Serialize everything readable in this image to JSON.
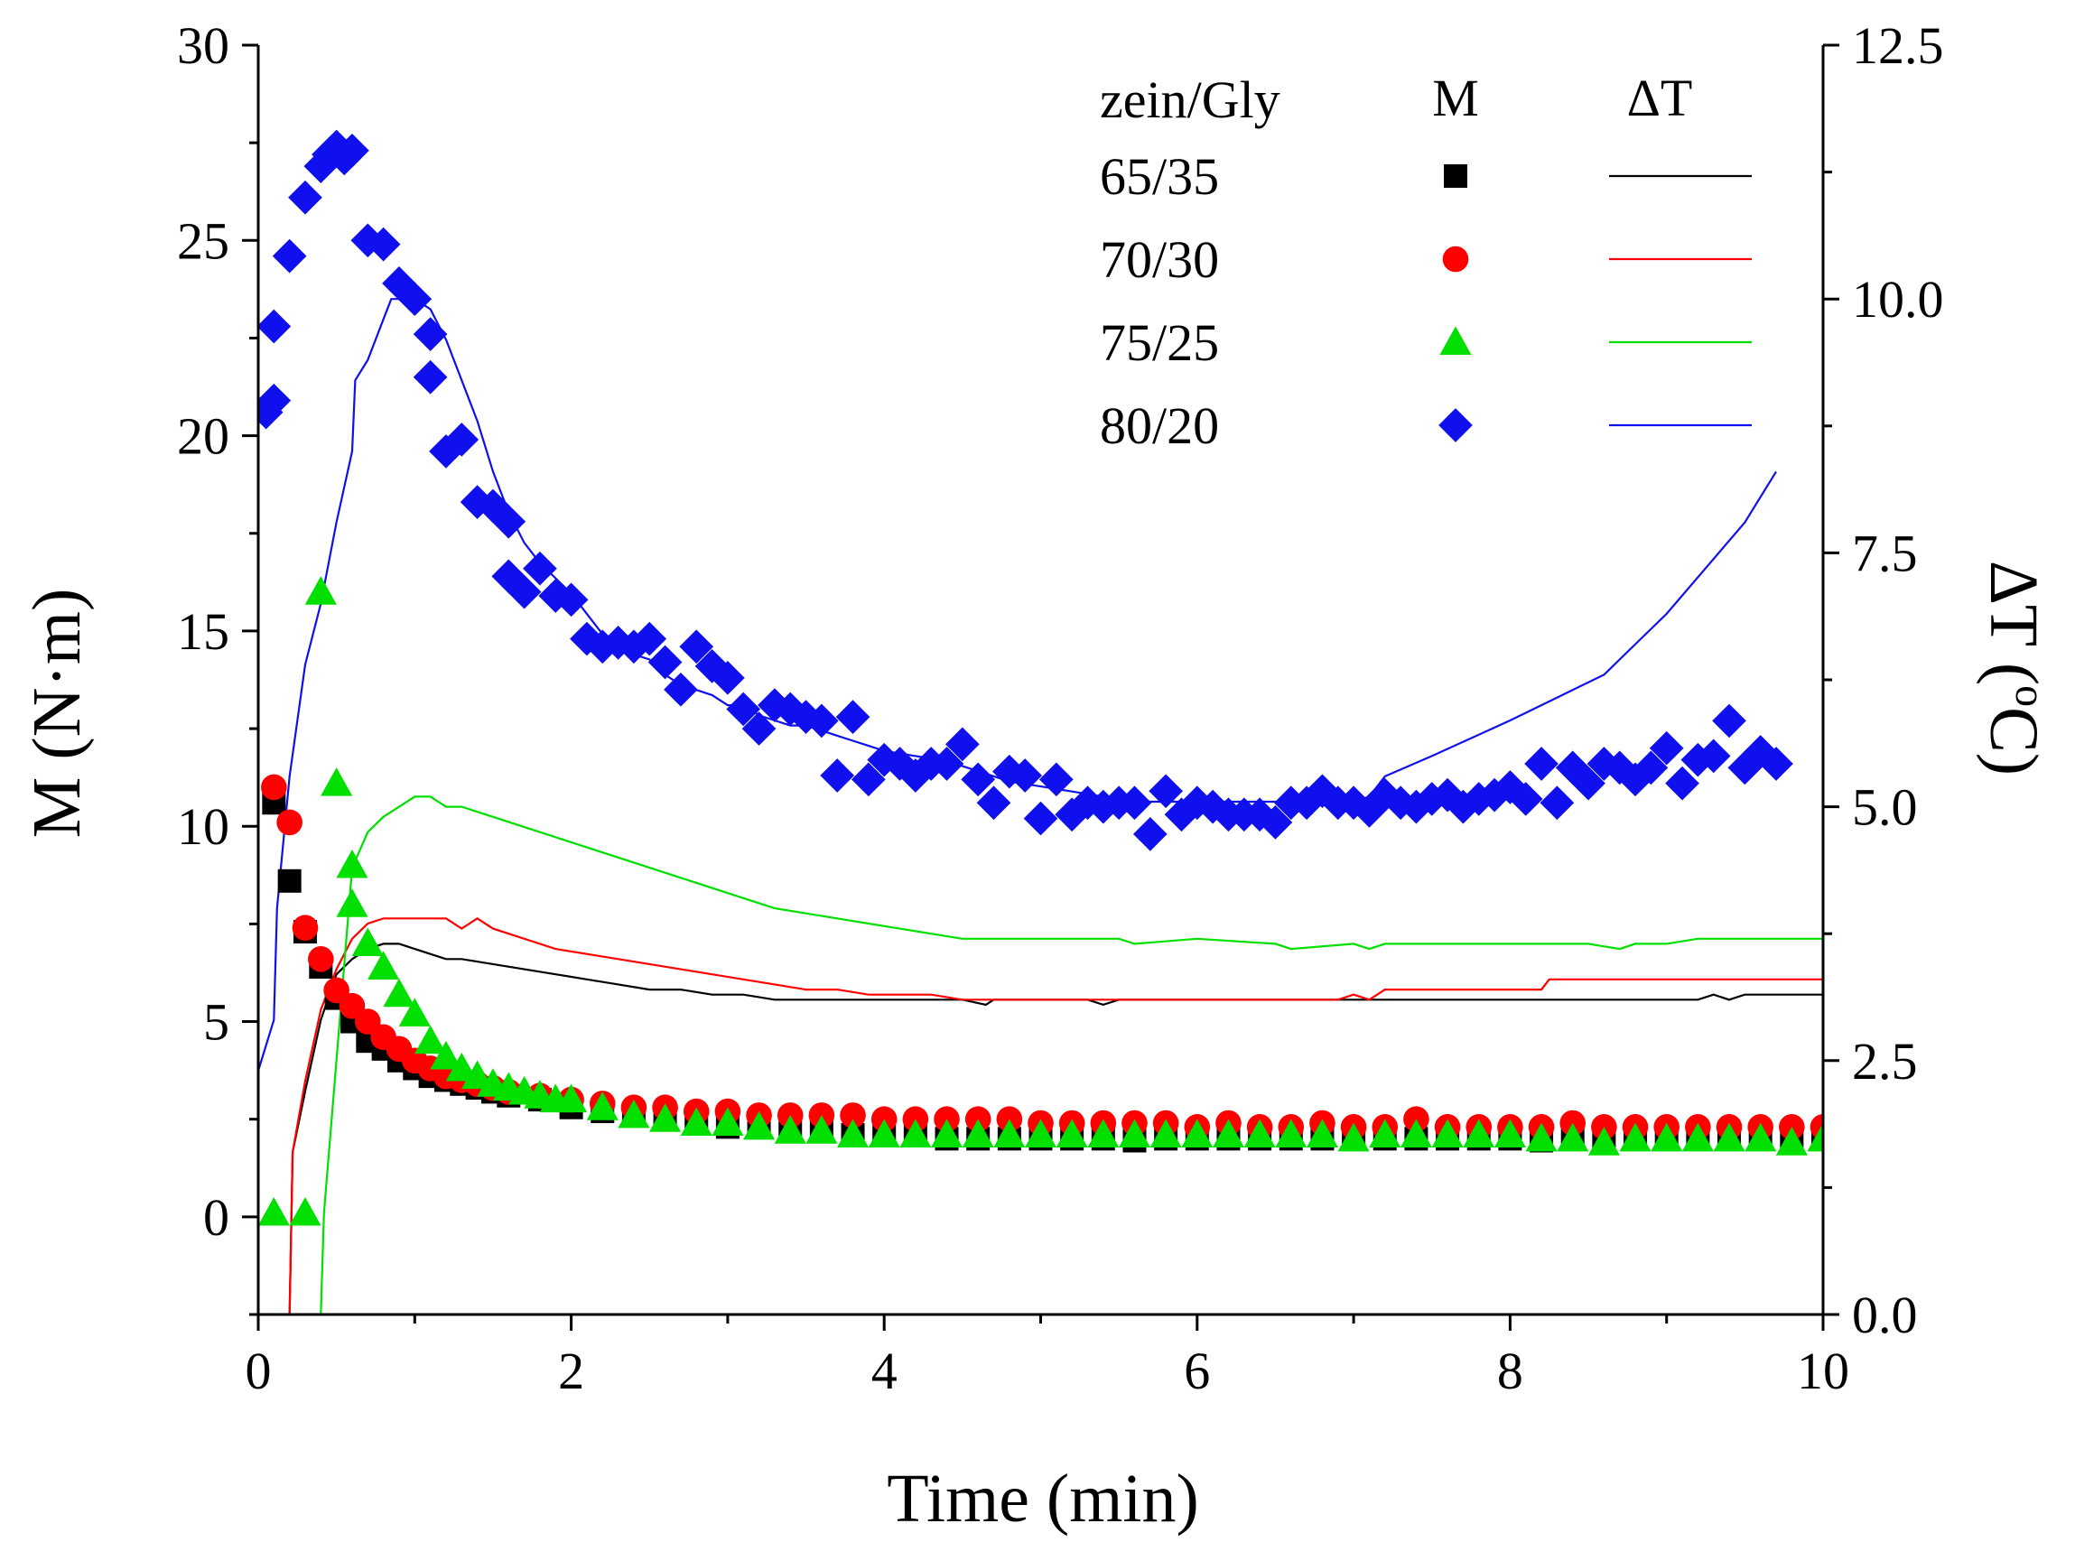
{
  "chart_data": {
    "type": "scatter",
    "xlabel": "Time (min)",
    "ylabel": "M (N·m)",
    "y2label_main": "ΔT (",
    "y2label_sup": "o",
    "y2label_end": "C)",
    "xlim": [
      0,
      10
    ],
    "ylim": [
      -2.5,
      30
    ],
    "y2lim": [
      0,
      12.5
    ],
    "x_ticks": [
      "0",
      "2",
      "4",
      "6",
      "8",
      "10"
    ],
    "y_ticks": [
      "0",
      "5",
      "10",
      "15",
      "20",
      "25",
      "30"
    ],
    "y2_ticks": [
      "0.0",
      "2.5",
      "5.0",
      "7.5",
      "10.0",
      "12.5"
    ],
    "legend": {
      "position": "top-right",
      "header_group": "zein/Gly",
      "header_m": "M",
      "header_dt": "ΔT"
    },
    "series": [
      {
        "name": "65/35",
        "color": "#000000",
        "marker": "square",
        "M": {
          "x": [
            0.1,
            0.2,
            0.3,
            0.4,
            0.5,
            0.6,
            0.7,
            0.8,
            0.9,
            1.0,
            1.1,
            1.2,
            1.3,
            1.4,
            1.5,
            1.6,
            1.8,
            2.0,
            2.2,
            2.4,
            2.6,
            2.8,
            3.0,
            3.2,
            3.4,
            3.6,
            3.8,
            4.0,
            4.2,
            4.4,
            4.6,
            4.8,
            5.0,
            5.2,
            5.4,
            5.6,
            5.8,
            6.0,
            6.2,
            6.4,
            6.6,
            6.8,
            7.0,
            7.2,
            7.4,
            7.6,
            7.8,
            8.0,
            8.2,
            8.4,
            8.6,
            8.8,
            9.0,
            9.2,
            9.4,
            9.6,
            9.8,
            10.0
          ],
          "y": [
            10.6,
            8.6,
            7.3,
            6.4,
            5.6,
            5.0,
            4.5,
            4.3,
            4.0,
            3.8,
            3.6,
            3.5,
            3.4,
            3.3,
            3.2,
            3.1,
            3.0,
            2.8,
            2.7,
            2.6,
            2.5,
            2.4,
            2.3,
            2.3,
            2.2,
            2.2,
            2.1,
            2.1,
            2.1,
            2.0,
            2.0,
            2.0,
            2.0,
            2.0,
            2.0,
            1.95,
            2.0,
            2.0,
            2.0,
            2.0,
            2.0,
            2.0,
            2.0,
            2.0,
            2.0,
            2.0,
            2.0,
            2.0,
            1.95,
            2.0,
            2.0,
            2.0,
            2.0,
            2.0,
            2.0,
            2.0,
            2.0,
            2.0
          ]
        },
        "dT": {
          "x": [
            0.1,
            0.2,
            0.22,
            0.3,
            0.4,
            0.5,
            0.6,
            0.7,
            0.8,
            0.9,
            1.0,
            1.1,
            1.2,
            1.3,
            1.5,
            1.7,
            1.9,
            2.1,
            2.3,
            2.5,
            2.7,
            2.9,
            3.1,
            3.3,
            3.5,
            3.7,
            4.0,
            4.5,
            4.65,
            4.7,
            5.0,
            5.3,
            5.4,
            5.5,
            6.0,
            6.5,
            7.0,
            7.5,
            8.0,
            8.5,
            9.0,
            9.2,
            9.3,
            9.4,
            9.5,
            10.0
          ],
          "y": [
            0.0,
            0.0,
            1.6,
            2.2,
            2.9,
            3.35,
            3.5,
            3.6,
            3.65,
            3.65,
            3.6,
            3.55,
            3.5,
            3.5,
            3.45,
            3.4,
            3.35,
            3.3,
            3.25,
            3.2,
            3.2,
            3.15,
            3.15,
            3.1,
            3.1,
            3.1,
            3.1,
            3.1,
            3.05,
            3.1,
            3.1,
            3.1,
            3.05,
            3.1,
            3.1,
            3.1,
            3.1,
            3.1,
            3.1,
            3.1,
            3.1,
            3.1,
            3.15,
            3.1,
            3.15,
            3.15
          ]
        }
      },
      {
        "name": "70/30",
        "color": "#ff0000",
        "marker": "circle",
        "M": {
          "x": [
            0.1,
            0.2,
            0.3,
            0.4,
            0.5,
            0.6,
            0.7,
            0.8,
            0.9,
            1.0,
            1.1,
            1.2,
            1.3,
            1.4,
            1.5,
            1.6,
            1.8,
            2.0,
            2.2,
            2.4,
            2.6,
            2.8,
            3.0,
            3.2,
            3.4,
            3.6,
            3.8,
            4.0,
            4.2,
            4.4,
            4.6,
            4.8,
            5.0,
            5.2,
            5.4,
            5.6,
            5.8,
            6.0,
            6.2,
            6.4,
            6.6,
            6.8,
            7.0,
            7.2,
            7.4,
            7.6,
            7.8,
            8.0,
            8.2,
            8.4,
            8.6,
            8.8,
            9.0,
            9.2,
            9.4,
            9.6,
            9.8,
            10.0
          ],
          "y": [
            11.0,
            10.1,
            7.4,
            6.6,
            5.8,
            5.4,
            5.0,
            4.6,
            4.3,
            4.0,
            3.8,
            3.6,
            3.5,
            3.4,
            3.3,
            3.2,
            3.1,
            3.0,
            2.9,
            2.8,
            2.8,
            2.7,
            2.7,
            2.6,
            2.6,
            2.6,
            2.6,
            2.5,
            2.5,
            2.5,
            2.5,
            2.5,
            2.4,
            2.4,
            2.4,
            2.4,
            2.4,
            2.3,
            2.4,
            2.3,
            2.3,
            2.4,
            2.3,
            2.3,
            2.5,
            2.3,
            2.3,
            2.3,
            2.3,
            2.4,
            2.3,
            2.3,
            2.3,
            2.3,
            2.3,
            2.3,
            2.3,
            2.3
          ]
        },
        "dT": {
          "x": [
            0.1,
            0.2,
            0.22,
            0.3,
            0.4,
            0.5,
            0.6,
            0.7,
            0.8,
            0.9,
            1.0,
            1.1,
            1.2,
            1.3,
            1.4,
            1.5,
            1.7,
            1.9,
            2.1,
            2.3,
            2.5,
            2.7,
            2.9,
            3.1,
            3.3,
            3.5,
            3.7,
            3.9,
            4.1,
            4.3,
            4.5,
            4.7,
            4.9,
            5.2,
            5.5,
            5.8,
            6.0,
            6.5,
            6.9,
            7.0,
            7.1,
            7.2,
            7.5,
            8.0,
            8.2,
            8.25,
            8.5,
            9.0,
            9.5,
            10.0
          ],
          "y": [
            0.0,
            0.0,
            1.6,
            2.3,
            3.0,
            3.4,
            3.7,
            3.85,
            3.9,
            3.9,
            3.9,
            3.9,
            3.9,
            3.8,
            3.9,
            3.8,
            3.7,
            3.6,
            3.55,
            3.5,
            3.45,
            3.4,
            3.35,
            3.3,
            3.25,
            3.2,
            3.2,
            3.15,
            3.15,
            3.15,
            3.1,
            3.1,
            3.1,
            3.1,
            3.1,
            3.1,
            3.1,
            3.1,
            3.1,
            3.15,
            3.1,
            3.2,
            3.2,
            3.2,
            3.2,
            3.3,
            3.3,
            3.3,
            3.3,
            3.3
          ]
        }
      },
      {
        "name": "75/25",
        "color": "#00e000",
        "marker": "triangle",
        "M": {
          "x": [
            0.1,
            0.3,
            0.4,
            0.5,
            0.6,
            0.6,
            0.7,
            0.8,
            0.9,
            1.0,
            1.1,
            1.2,
            1.3,
            1.4,
            1.5,
            1.6,
            1.7,
            1.8,
            1.9,
            2.0,
            2.2,
            2.4,
            2.6,
            2.8,
            3.0,
            3.2,
            3.4,
            3.6,
            3.8,
            4.0,
            4.2,
            4.4,
            4.6,
            4.8,
            5.0,
            5.2,
            5.4,
            5.6,
            5.8,
            6.0,
            6.2,
            6.4,
            6.6,
            6.8,
            7.0,
            7.2,
            7.4,
            7.6,
            7.8,
            8.0,
            8.2,
            8.4,
            8.6,
            8.8,
            9.0,
            9.2,
            9.4,
            9.6,
            9.8,
            10.0
          ],
          "y": [
            0.1,
            0.1,
            16.0,
            11.1,
            9.0,
            8.0,
            7.0,
            6.4,
            5.7,
            5.2,
            4.5,
            4.1,
            3.8,
            3.6,
            3.4,
            3.3,
            3.2,
            3.1,
            3.0,
            3.0,
            2.8,
            2.6,
            2.5,
            2.4,
            2.4,
            2.3,
            2.2,
            2.2,
            2.1,
            2.1,
            2.1,
            2.1,
            2.1,
            2.1,
            2.1,
            2.1,
            2.1,
            2.1,
            2.1,
            2.1,
            2.1,
            2.1,
            2.1,
            2.1,
            2.0,
            2.1,
            2.1,
            2.1,
            2.1,
            2.1,
            2.0,
            2.0,
            1.9,
            2.0,
            2.0,
            2.0,
            2.0,
            2.0,
            1.9,
            2.0
          ]
        },
        "dT": {
          "x": [
            0.1,
            0.4,
            0.42,
            0.5,
            0.6,
            0.7,
            0.8,
            0.9,
            1.0,
            1.1,
            1.2,
            1.3,
            1.5,
            1.7,
            1.9,
            2.1,
            2.3,
            2.5,
            2.7,
            2.9,
            3.1,
            3.3,
            3.5,
            3.7,
            3.9,
            4.1,
            4.5,
            5.0,
            5.5,
            5.6,
            6.0,
            6.5,
            6.6,
            7.0,
            7.1,
            7.2,
            7.5,
            8.0,
            8.5,
            8.7,
            8.8,
            9.0,
            9.2,
            9.5,
            10.0
          ],
          "y": [
            0.0,
            0.0,
            1.0,
            2.5,
            4.4,
            4.75,
            4.9,
            5.0,
            5.1,
            5.1,
            5.0,
            5.0,
            4.9,
            4.8,
            4.7,
            4.6,
            4.5,
            4.4,
            4.3,
            4.2,
            4.1,
            4.0,
            3.95,
            3.9,
            3.85,
            3.8,
            3.7,
            3.7,
            3.7,
            3.65,
            3.7,
            3.65,
            3.6,
            3.65,
            3.6,
            3.65,
            3.65,
            3.65,
            3.65,
            3.6,
            3.65,
            3.65,
            3.7,
            3.7,
            3.7
          ]
        }
      },
      {
        "name": "80/20",
        "color": "#1010ee",
        "marker": "diamond",
        "M": {
          "x": [
            0.05,
            0.1,
            0.1,
            0.2,
            0.3,
            0.4,
            0.45,
            0.5,
            0.55,
            0.6,
            0.7,
            0.8,
            0.9,
            1.0,
            1.1,
            1.1,
            1.2,
            1.3,
            1.4,
            1.5,
            1.6,
            1.6,
            1.7,
            1.8,
            1.9,
            2.0,
            2.1,
            2.2,
            2.3,
            2.4,
            2.5,
            2.6,
            2.7,
            2.8,
            2.9,
            3.0,
            3.1,
            3.2,
            3.3,
            3.4,
            3.5,
            3.6,
            3.7,
            3.8,
            3.9,
            4.0,
            4.1,
            4.2,
            4.3,
            4.4,
            4.5,
            4.6,
            4.7,
            4.8,
            4.9,
            5.0,
            5.1,
            5.2,
            5.3,
            5.4,
            5.5,
            5.6,
            5.7,
            5.8,
            5.9,
            6.0,
            6.1,
            6.2,
            6.3,
            6.4,
            6.5,
            6.6,
            6.7,
            6.8,
            6.9,
            7.0,
            7.1,
            7.2,
            7.3,
            7.4,
            7.5,
            7.6,
            7.7,
            7.8,
            7.9,
            8.0,
            8.1,
            8.2,
            8.3,
            8.4,
            8.5,
            8.6,
            8.7,
            8.8,
            8.9,
            9.0,
            9.1,
            9.2,
            9.3,
            9.4,
            9.5,
            9.6,
            9.7
          ],
          "y": [
            20.6,
            20.9,
            22.8,
            24.6,
            26.1,
            26.9,
            27.2,
            27.4,
            27.1,
            27.3,
            25.0,
            24.9,
            23.9,
            23.5,
            22.6,
            21.5,
            19.6,
            19.9,
            18.3,
            18.2,
            17.8,
            16.4,
            16.0,
            16.6,
            15.9,
            15.8,
            14.8,
            14.6,
            14.7,
            14.6,
            14.8,
            14.2,
            13.5,
            14.6,
            14.1,
            13.8,
            13.0,
            12.5,
            13.1,
            13.0,
            12.8,
            12.7,
            11.3,
            12.8,
            11.2,
            11.7,
            11.6,
            11.3,
            11.6,
            11.6,
            12.1,
            11.2,
            10.6,
            11.4,
            11.3,
            10.2,
            11.2,
            10.3,
            10.6,
            10.5,
            10.6,
            10.6,
            9.8,
            10.9,
            10.3,
            10.6,
            10.5,
            10.3,
            10.3,
            10.3,
            10.1,
            10.6,
            10.6,
            10.9,
            10.6,
            10.6,
            10.4,
            10.8,
            10.6,
            10.5,
            10.7,
            10.8,
            10.5,
            10.7,
            10.8,
            11.0,
            10.7,
            11.6,
            10.6,
            11.5,
            11.1,
            11.6,
            11.5,
            11.2,
            11.5,
            12.0,
            11.1,
            11.7,
            11.8,
            12.7,
            11.5,
            11.9,
            11.6
          ]
        },
        "dT": {
          "x": [
            0.0,
            0.1,
            0.12,
            0.2,
            0.3,
            0.4,
            0.5,
            0.6,
            0.62,
            0.7,
            0.8,
            0.85,
            0.9,
            1.0,
            1.1,
            1.2,
            1.3,
            1.4,
            1.5,
            1.6,
            1.7,
            1.8,
            1.9,
            2.0,
            2.1,
            2.2,
            2.3,
            2.4,
            2.5,
            2.6,
            2.7,
            2.8,
            2.9,
            3.0,
            3.1,
            3.2,
            3.3,
            3.4,
            3.5,
            3.6,
            3.7,
            3.8,
            3.9,
            4.0,
            4.2,
            4.4,
            4.6,
            4.8,
            5.0,
            5.2,
            5.4,
            5.5,
            6.0,
            6.5,
            7.0,
            7.1,
            7.2,
            7.5,
            8.0,
            8.2,
            8.4,
            8.6,
            8.7,
            8.8,
            9.0,
            9.5,
            9.7
          ],
          "y": [
            2.4,
            2.9,
            4.0,
            5.3,
            6.4,
            7.0,
            7.8,
            8.5,
            9.2,
            9.4,
            9.8,
            10.0,
            10.0,
            10.0,
            9.9,
            9.6,
            9.2,
            8.8,
            8.3,
            7.9,
            7.6,
            7.4,
            7.25,
            7.1,
            6.9,
            6.7,
            6.6,
            6.5,
            6.45,
            6.3,
            6.2,
            6.15,
            6.1,
            6.0,
            6.0,
            5.9,
            5.85,
            5.8,
            5.8,
            5.75,
            5.7,
            5.65,
            5.6,
            5.55,
            5.5,
            5.45,
            5.35,
            5.25,
            5.2,
            5.15,
            5.1,
            5.05,
            5.05,
            5.05,
            5.05,
            5.1,
            5.3,
            5.5,
            5.85,
            6.0,
            6.15,
            6.3,
            6.45,
            6.6,
            6.9,
            7.8,
            8.3
          ]
        }
      }
    ]
  }
}
